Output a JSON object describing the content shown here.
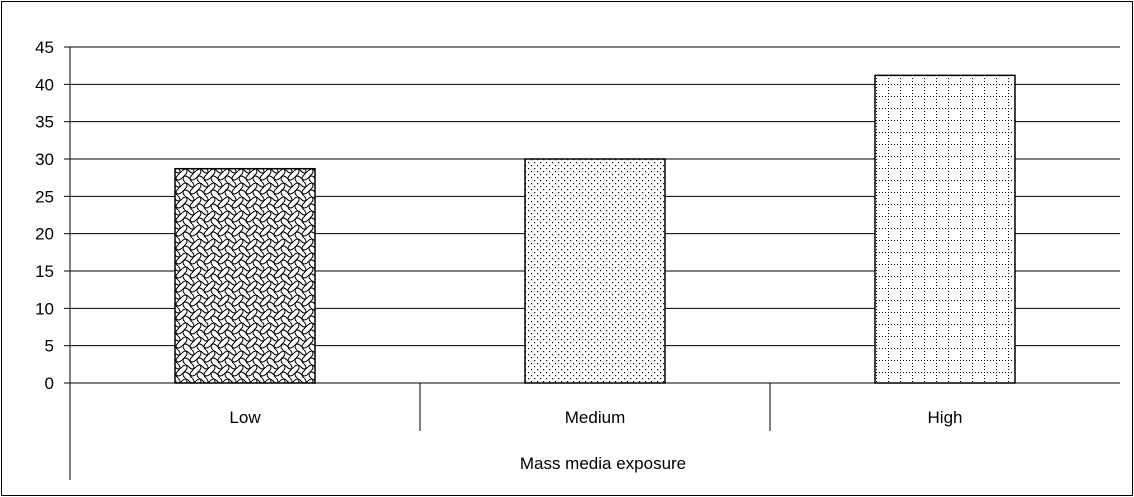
{
  "chart_data": {
    "type": "bar",
    "categories": [
      "Low",
      "Medium",
      "High"
    ],
    "values": [
      28.7,
      30,
      41.2
    ],
    "xlabel": "Mass media exposure",
    "ylabel": "",
    "ylim": [
      0,
      45
    ],
    "yticks": [
      0,
      5,
      10,
      15,
      20,
      25,
      30,
      35,
      40,
      45
    ],
    "grid": true,
    "legend": "none",
    "fills": [
      "wave-pattern",
      "dot-pattern",
      "grid-pattern"
    ],
    "colors": {
      "bar_stroke": "#000000",
      "background": "#ffffff",
      "grid": "#000000"
    }
  }
}
